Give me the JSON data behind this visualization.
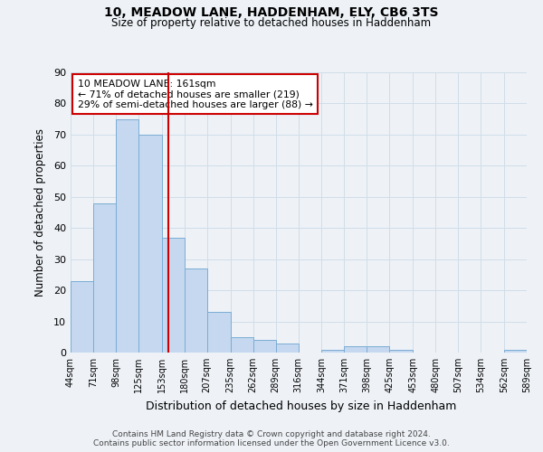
{
  "title": "10, MEADOW LANE, HADDENHAM, ELY, CB6 3TS",
  "subtitle": "Size of property relative to detached houses in Haddenham",
  "xlabel": "Distribution of detached houses by size in Haddenham",
  "ylabel": "Number of detached properties",
  "bar_edges": [
    44,
    71,
    98,
    125,
    153,
    180,
    207,
    235,
    262,
    289,
    316,
    344,
    371,
    398,
    425,
    453,
    480,
    507,
    534,
    562,
    589
  ],
  "bar_heights": [
    23,
    48,
    75,
    70,
    37,
    27,
    13,
    5,
    4,
    3,
    0,
    1,
    2,
    2,
    1,
    0,
    0,
    0,
    0,
    1
  ],
  "tick_labels": [
    "44sqm",
    "71sqm",
    "98sqm",
    "125sqm",
    "153sqm",
    "180sqm",
    "207sqm",
    "235sqm",
    "262sqm",
    "289sqm",
    "316sqm",
    "344sqm",
    "371sqm",
    "398sqm",
    "425sqm",
    "453sqm",
    "480sqm",
    "507sqm",
    "534sqm",
    "562sqm",
    "589sqm"
  ],
  "bar_color": "#c5d8ef",
  "bar_edge_color": "#7aadd4",
  "grid_color": "#d0dde8",
  "vline_x": 161,
  "vline_color": "#cc0000",
  "annotation_line1": "10 MEADOW LANE: 161sqm",
  "annotation_line2": "← 71% of detached houses are smaller (219)",
  "annotation_line3": "29% of semi-detached houses are larger (88) →",
  "annotation_box_color": "#cc0000",
  "ylim": [
    0,
    90
  ],
  "yticks": [
    0,
    10,
    20,
    30,
    40,
    50,
    60,
    70,
    80,
    90
  ],
  "footer_line1": "Contains HM Land Registry data © Crown copyright and database right 2024.",
  "footer_line2": "Contains public sector information licensed under the Open Government Licence v3.0.",
  "bg_color": "#eef2f7",
  "plot_bg_color": "#eef2f7"
}
